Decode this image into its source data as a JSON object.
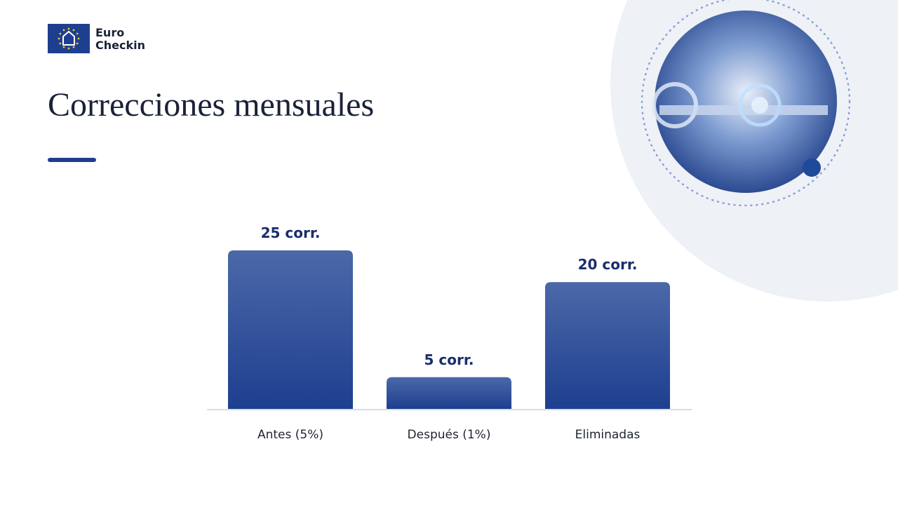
{
  "logo": {
    "line1": "Euro",
    "line2": "Checkin"
  },
  "chart_data": {
    "type": "bar",
    "title": "Correcciones mensuales",
    "categories": [
      "Antes (5%)",
      "Después (1%)",
      "Eliminadas"
    ],
    "values": [
      25,
      5,
      20
    ],
    "value_labels": [
      "25 corr.",
      "5 corr.",
      "20 corr."
    ],
    "color": "#1e3f8f"
  }
}
